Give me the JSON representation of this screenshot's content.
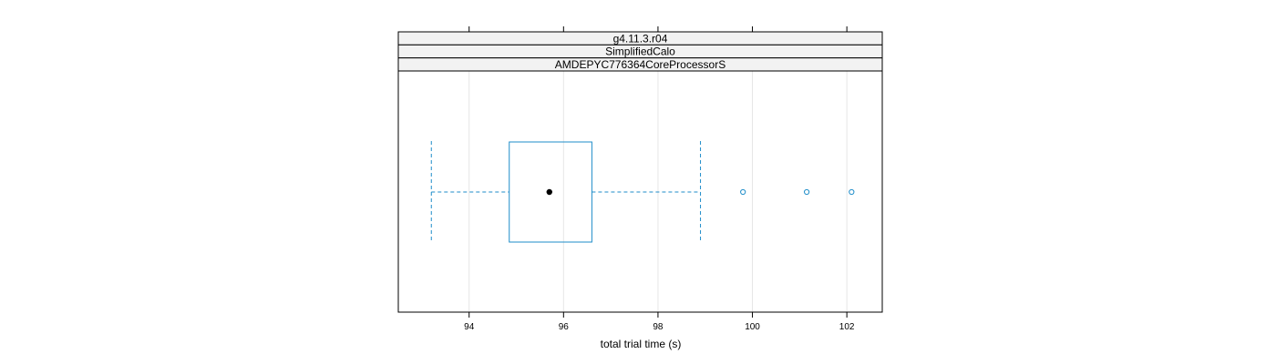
{
  "chart_data": {
    "type": "boxplot",
    "xlabel": "total trial time (s)",
    "strips": [
      "g4.11.3.r04",
      "SimplifiedCalo",
      "AMDEPYC776364CoreProcessorS"
    ],
    "xlim": [
      92.5,
      102.75
    ],
    "ticks": [
      94,
      96,
      98,
      100,
      102
    ],
    "tick_labels": [
      "94",
      "96",
      "98",
      "100",
      "102"
    ],
    "grid": true,
    "box": {
      "whisker_low": 93.2,
      "q1": 94.85,
      "median": 95.7,
      "q3": 96.6,
      "whisker_high": 98.9,
      "outliers": [
        99.8,
        101.15,
        102.1
      ]
    },
    "colors": {
      "box": "#1f8dc9",
      "median_dot": "#000000",
      "strip_bg": "#f2f2f2",
      "grid": "#e6e6e6"
    }
  }
}
